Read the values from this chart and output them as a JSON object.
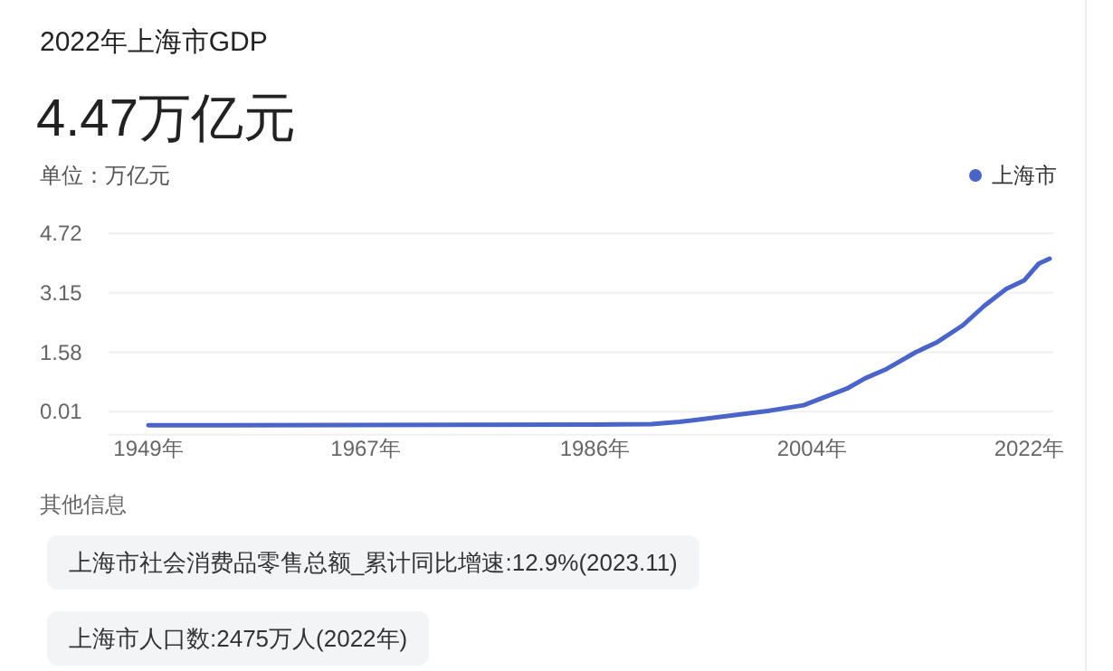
{
  "chart_data": {
    "type": "line",
    "title": "2022年上海市GDP",
    "subtitle": "4.47万亿元",
    "ylabel": "单位：万亿元",
    "x": [
      1949,
      1986,
      1990.7,
      1993,
      1997.3,
      2000.3,
      2003.3,
      2006.9,
      2008.4,
      2010.2,
      2012.6,
      2014.4,
      2016.5,
      2018.3,
      2020.1,
      2021.6,
      2022.8,
      2023.7
    ],
    "series": [
      {
        "name": "上海市",
        "color": "#4a64c8",
        "values": [
          -0.35,
          -0.33,
          -0.32,
          -0.26,
          -0.09,
          0.03,
          0.18,
          0.62,
          0.89,
          1.14,
          1.58,
          1.85,
          2.29,
          2.81,
          3.25,
          3.48,
          3.92,
          4.05
        ]
      }
    ],
    "xlim": [
      1945.7,
      2024
    ],
    "ylim": [
      -0.6,
      4.72
    ],
    "xticks": [
      {
        "value": 1949,
        "label": "1949年"
      },
      {
        "value": 1967,
        "label": "1967年"
      },
      {
        "value": 1986,
        "label": "1986年"
      },
      {
        "value": 2004,
        "label": "2004年"
      },
      {
        "value": 2022,
        "label": "2022年"
      }
    ],
    "yticks": [
      0.01,
      1.58,
      3.15,
      4.72
    ],
    "grid": "y",
    "legend": "top right",
    "marker": "none",
    "line_style": "solid",
    "annotations": [
      "其他信息",
      "上海市社会消费品零售总额_累计同比增速:12.9%(2023.11)",
      "上海市人口数:2475万人(2022年)"
    ]
  }
}
